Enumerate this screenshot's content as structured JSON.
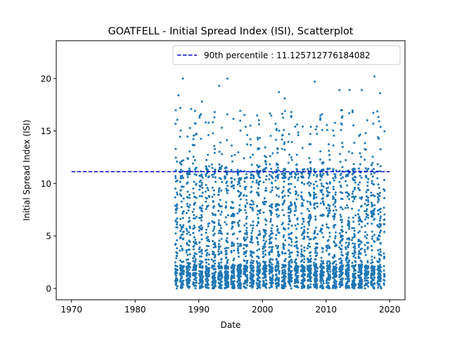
{
  "chart_data": {
    "type": "scatter",
    "title": "GOATFELL - Initial Spread Index (ISI), Scatterplot",
    "xlabel": "Date",
    "ylabel": "Initial Spread Index (ISI)",
    "xlim": [
      1967.6,
      2022.4
    ],
    "ylim": [
      -1.08,
      23.6
    ],
    "x_ticks": [
      1970,
      1980,
      1990,
      2000,
      2010,
      2020
    ],
    "y_ticks": [
      0,
      5,
      10,
      15,
      20
    ],
    "grid": false,
    "legend_position": "top-right",
    "series": [
      {
        "name": "",
        "kind": "points",
        "color": "#1f77b4",
        "x_range": [
          1986.3,
          2019.2
        ],
        "y_range": [
          0,
          21.4
        ],
        "approx_count": 4000
      },
      {
        "name": "90th percentile : 11.125712776184082",
        "kind": "horizontal-line",
        "y": 11.125712776184082,
        "x_range": [
          1970,
          2020
        ],
        "color": "#0000cc",
        "style": "dashed"
      }
    ],
    "notable_points": [
      {
        "x": 1986.8,
        "y": 18.4
      },
      {
        "x": 1987.1,
        "y": 17.2
      },
      {
        "x": 1987.5,
        "y": 20.0
      },
      {
        "x": 1988.8,
        "y": 17.1
      },
      {
        "x": 1990.5,
        "y": 17.8
      },
      {
        "x": 1992.5,
        "y": 16.8
      },
      {
        "x": 1993.2,
        "y": 19.3
      },
      {
        "x": 1994.5,
        "y": 20.0
      },
      {
        "x": 2002.6,
        "y": 18.7
      },
      {
        "x": 2003.5,
        "y": 18.1
      },
      {
        "x": 2007.3,
        "y": 21.4
      },
      {
        "x": 2008.2,
        "y": 19.7
      },
      {
        "x": 2012.1,
        "y": 18.9
      },
      {
        "x": 2013.7,
        "y": 18.9
      },
      {
        "x": 2015.6,
        "y": 18.9
      },
      {
        "x": 2017.6,
        "y": 20.2
      },
      {
        "x": 2018.5,
        "y": 18.6
      }
    ]
  }
}
